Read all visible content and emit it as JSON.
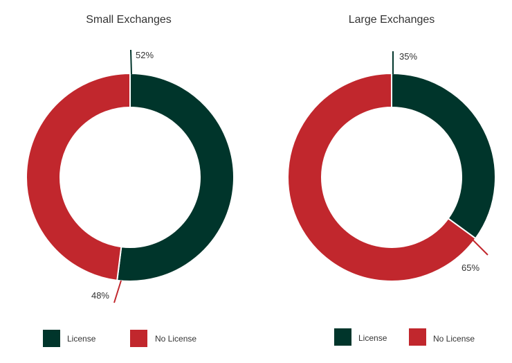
{
  "chart_data": [
    {
      "type": "pie",
      "title": "Small Exchanges",
      "categories": [
        "License",
        "No License"
      ],
      "values": [
        52,
        48
      ],
      "value_labels": [
        "52%",
        "48%"
      ],
      "colors": [
        "#00352B",
        "#C1272D"
      ],
      "hole": true,
      "legend_position": "bottom"
    },
    {
      "type": "pie",
      "title": "Large Exchanges",
      "categories": [
        "License",
        "No License"
      ],
      "values": [
        35,
        65
      ],
      "value_labels": [
        "35%",
        "65%"
      ],
      "colors": [
        "#00352B",
        "#C1272D"
      ],
      "hole": true,
      "legend_position": "bottom"
    }
  ]
}
